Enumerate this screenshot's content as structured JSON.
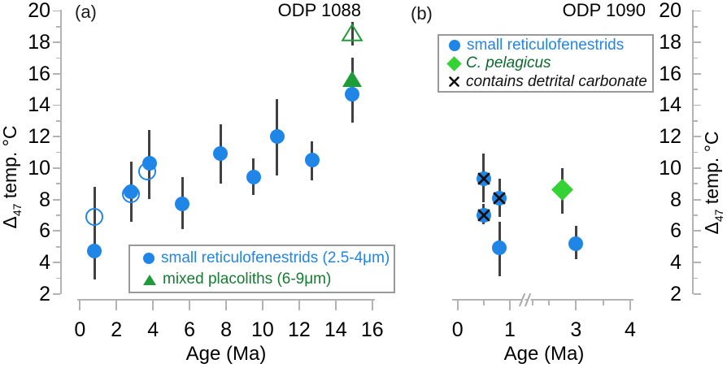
{
  "panels": {
    "a": {
      "label": "(a)",
      "title": "ODP 1088",
      "xlabel": "Age (Ma)",
      "ylabel": {
        "delta": "Δ",
        "sub": "47",
        "rest": " temp. °C"
      },
      "legend": [
        {
          "marker": "filled-circle",
          "label": "small reticulofenestrids (2.5-4μm)",
          "color": "#1f86e8"
        },
        {
          "marker": "filled-triangle",
          "label": "mixed placoliths (6-9μm)",
          "color": "#157c31"
        }
      ]
    },
    "b": {
      "label": "(b)",
      "title": "ODP 1090",
      "xlabel": "Age (Ma)",
      "ylabel": {
        "delta": "Δ",
        "sub": "47",
        "rest": " temp. °C"
      },
      "legend": [
        {
          "marker": "filled-circle",
          "label": "small reticulofenestrids",
          "color": "#1f86e8"
        },
        {
          "marker": "filled-diamond",
          "label": "C. pelagicus",
          "color": "#0c6b2c"
        },
        {
          "marker": "x-mark",
          "label": "contains detrital carbonate",
          "color": "#111111"
        }
      ]
    }
  },
  "colors": {
    "blue": "#1f86e8",
    "green_triangle": "#1f9c3a",
    "green_diamond": "#35d235",
    "green_text_dark": "#0c6b2c",
    "error_bar": "#414141",
    "axis_gray": "#b3b3b3",
    "x_mark": "#111111"
  },
  "chart_data": [
    {
      "panel": "a",
      "type": "scatter",
      "title": "ODP 1088",
      "xlabel": "Age (Ma)",
      "ylabel": "Δ47 temp. °C",
      "xlim": [
        0,
        16
      ],
      "ylim": [
        2,
        20
      ],
      "xticks": [
        0,
        2,
        4,
        6,
        8,
        10,
        12,
        14,
        16
      ],
      "yticks": [
        2,
        4,
        6,
        8,
        10,
        12,
        14,
        16,
        18,
        20
      ],
      "grid": false,
      "legend_position": "lower right inside",
      "series": [
        {
          "name": "small reticulofenestrids (2.5-4μm) open symbols",
          "marker": "open-circle",
          "color": "#1f86e8",
          "points": [
            {
              "x": 0.8,
              "y": 6.9,
              "err_lo": 5.0,
              "err_hi": 8.8
            },
            {
              "x": 2.8,
              "y": 8.35
            },
            {
              "x": 3.7,
              "y": 9.8
            }
          ]
        },
        {
          "name": "small reticulofenestrids (2.5-4μm)",
          "marker": "filled-circle",
          "color": "#1f86e8",
          "points": [
            {
              "x": 0.8,
              "y": 4.7,
              "err_lo": 2.9,
              "err_hi": 6.5
            },
            {
              "x": 2.8,
              "y": 8.5,
              "err_lo": 6.6,
              "err_hi": 10.4
            },
            {
              "x": 3.8,
              "y": 10.3,
              "err_lo": 8.0,
              "err_hi": 12.4
            },
            {
              "x": 5.6,
              "y": 7.7,
              "err_lo": 6.1,
              "err_hi": 9.4
            },
            {
              "x": 7.7,
              "y": 10.9,
              "err_lo": 9.0,
              "err_hi": 12.8
            },
            {
              "x": 9.5,
              "y": 9.4,
              "err_lo": 8.3,
              "err_hi": 10.6
            },
            {
              "x": 10.8,
              "y": 12.0,
              "err_lo": 9.5,
              "err_hi": 14.4
            },
            {
              "x": 12.7,
              "y": 10.5,
              "err_lo": 9.2,
              "err_hi": 11.7
            },
            {
              "x": 14.9,
              "y": 14.7,
              "err_lo": 12.9,
              "err_hi": 17.0
            }
          ]
        },
        {
          "name": "mixed placoliths (6-9μm) open symbol",
          "marker": "open-triangle",
          "color": "#1f9c3a",
          "points": [
            {
              "x": 14.9,
              "y": 18.6,
              "err_lo": 17.8,
              "err_hi": 19.3
            }
          ]
        },
        {
          "name": "mixed placoliths (6-9μm)",
          "marker": "filled-triangle",
          "color": "#1f9c3a",
          "points": [
            {
              "x": 14.9,
              "y": 15.7,
              "err_lo": 13.0,
              "err_hi": 17.0
            }
          ]
        }
      ]
    },
    {
      "panel": "b",
      "type": "scatter",
      "title": "ODP 1090",
      "xlabel": "Age (Ma)",
      "ylabel": "Δ47 temp. °C",
      "xlim": [
        0,
        4
      ],
      "ylim": [
        2,
        20
      ],
      "axis_break": {
        "axis": "x",
        "between": [
          1.3,
          2.2
        ]
      },
      "xticks": [
        0,
        1,
        3,
        4
      ],
      "xticks_minor": [
        0.5,
        2.2,
        2.5,
        3.5
      ],
      "yticks": [
        2,
        4,
        6,
        8,
        10,
        12,
        14,
        16,
        18,
        20
      ],
      "grid": false,
      "legend_position": "upper left inside",
      "series": [
        {
          "name": "small reticulofenestrids",
          "marker": "filled-circle",
          "color": "#1f86e8",
          "points": [
            {
              "x": 0.5,
              "y": 9.3,
              "err_lo": 7.8,
              "err_hi": 10.9,
              "detrital_carbonate": true
            },
            {
              "x": 0.5,
              "y": 7.0,
              "err_lo": 6.4,
              "err_hi": 7.7,
              "detrital_carbonate": true
            },
            {
              "x": 0.8,
              "y": 8.1,
              "err_lo": 6.9,
              "err_hi": 9.3,
              "detrital_carbonate": true
            },
            {
              "x": 0.8,
              "y": 4.9,
              "err_lo": 3.1,
              "err_hi": 6.6
            },
            {
              "x": 3.0,
              "y": 5.2,
              "err_lo": 4.2,
              "err_hi": 6.3
            }
          ]
        },
        {
          "name": "C. pelagicus",
          "marker": "filled-diamond",
          "color": "#35d235",
          "points": [
            {
              "x": 2.75,
              "y": 8.6,
              "err_lo": 7.1,
              "err_hi": 10.0
            }
          ]
        }
      ]
    }
  ]
}
